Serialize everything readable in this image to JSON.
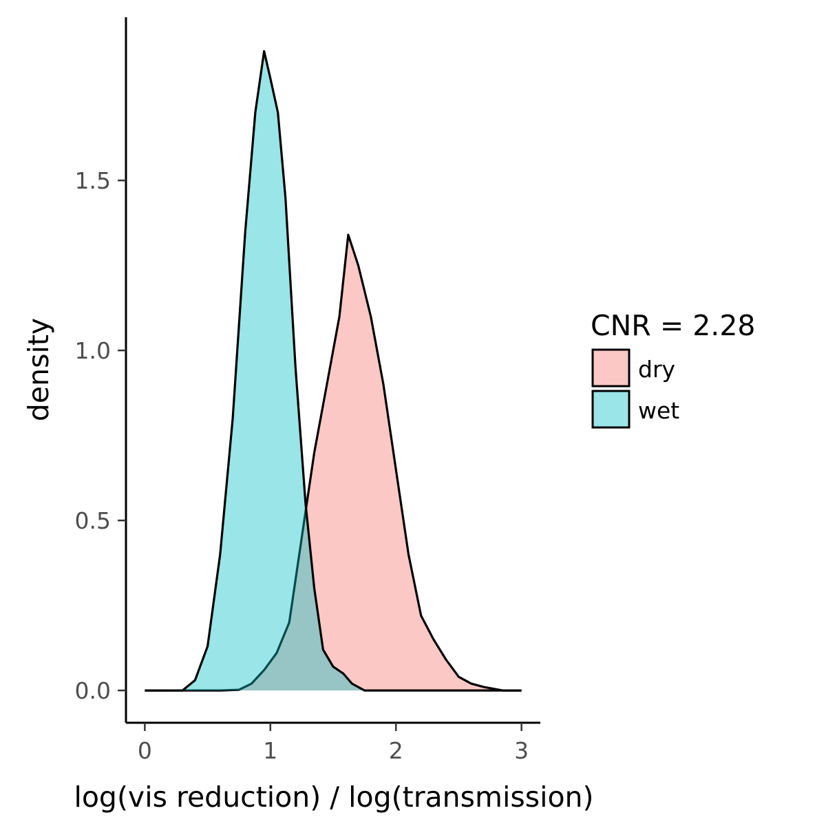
{
  "chart_data": {
    "type": "area",
    "xlabel": "log(vis reduction) / log(transmission)",
    "ylabel": "density",
    "xlim": [
      -0.15,
      3.15
    ],
    "ylim": [
      -0.095,
      1.98
    ],
    "x_ticks": [
      0,
      1,
      2,
      3
    ],
    "y_ticks": [
      0.0,
      0.5,
      1.0,
      1.5
    ],
    "x_tick_labels": [
      "0",
      "1",
      "2",
      "3"
    ],
    "y_tick_labels": [
      "0.0",
      "0.5",
      "1.0",
      "1.5"
    ],
    "grid": false,
    "legend": {
      "title": "CNR = 2.28",
      "position": "right",
      "entries": [
        "dry",
        "wet"
      ]
    },
    "series": [
      {
        "name": "dry",
        "color": "#F8766D",
        "fill_opacity": 0.4,
        "points": [
          [
            0.0,
            0.0
          ],
          [
            0.6,
            0.0
          ],
          [
            0.75,
            0.002
          ],
          [
            0.85,
            0.02
          ],
          [
            0.95,
            0.06
          ],
          [
            1.05,
            0.11
          ],
          [
            1.15,
            0.2
          ],
          [
            1.25,
            0.45
          ],
          [
            1.35,
            0.7
          ],
          [
            1.45,
            0.9
          ],
          [
            1.55,
            1.1
          ],
          [
            1.62,
            1.34
          ],
          [
            1.7,
            1.25
          ],
          [
            1.8,
            1.1
          ],
          [
            1.9,
            0.9
          ],
          [
            2.0,
            0.65
          ],
          [
            2.1,
            0.4
          ],
          [
            2.2,
            0.22
          ],
          [
            2.3,
            0.15
          ],
          [
            2.4,
            0.09
          ],
          [
            2.5,
            0.04
          ],
          [
            2.6,
            0.02
          ],
          [
            2.7,
            0.01
          ],
          [
            2.85,
            0.0
          ],
          [
            3.0,
            0.0
          ]
        ]
      },
      {
        "name": "wet",
        "color": "#00BFC4",
        "fill_opacity": 0.4,
        "points": [
          [
            0.0,
            0.0
          ],
          [
            0.3,
            0.0
          ],
          [
            0.4,
            0.03
          ],
          [
            0.5,
            0.13
          ],
          [
            0.6,
            0.4
          ],
          [
            0.7,
            0.8
          ],
          [
            0.8,
            1.35
          ],
          [
            0.88,
            1.7
          ],
          [
            0.95,
            1.88
          ],
          [
            1.0,
            1.8
          ],
          [
            1.06,
            1.7
          ],
          [
            1.12,
            1.45
          ],
          [
            1.2,
            0.95
          ],
          [
            1.28,
            0.55
          ],
          [
            1.35,
            0.3
          ],
          [
            1.42,
            0.12
          ],
          [
            1.5,
            0.07
          ],
          [
            1.58,
            0.05
          ],
          [
            1.65,
            0.02
          ],
          [
            1.75,
            0.0
          ],
          [
            3.0,
            0.0
          ]
        ]
      }
    ]
  }
}
